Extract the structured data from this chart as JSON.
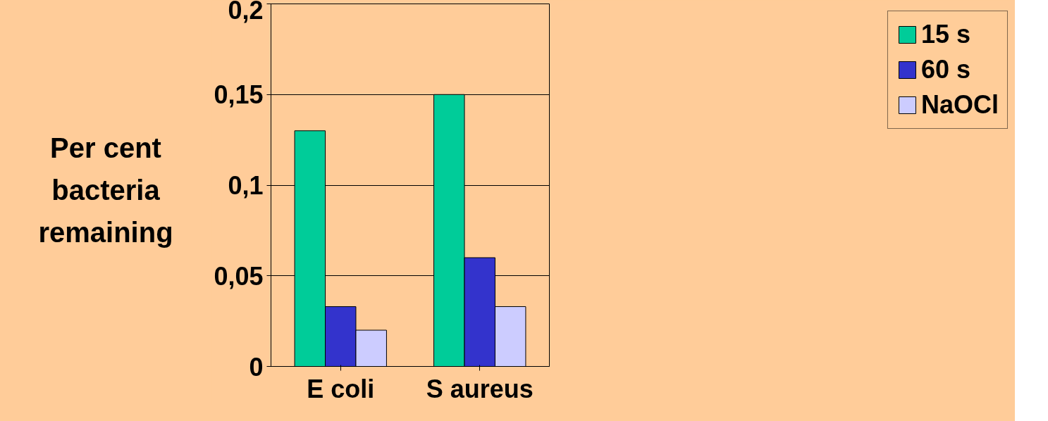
{
  "chart_data": {
    "type": "bar",
    "ylabel": "Per cent bacteria remaining",
    "categories": [
      "E coli",
      "S aureus"
    ],
    "series": [
      {
        "name": "15 s",
        "color": "#00cc99",
        "values": [
          0.13,
          0.15
        ]
      },
      {
        "name": "60 s",
        "color": "#3333cc",
        "values": [
          0.033,
          0.06
        ]
      },
      {
        "name": "NaOCl",
        "color": "#ccccff",
        "values": [
          0.02,
          0.033
        ]
      }
    ],
    "ylim": [
      0,
      0.2
    ],
    "yticks": [
      {
        "value": 0,
        "label": "0"
      },
      {
        "value": 0.05,
        "label": "0,05"
      },
      {
        "value": 0.1,
        "label": "0,1"
      },
      {
        "value": 0.15,
        "label": "0,15"
      },
      {
        "value": 0.2,
        "label": "0,2"
      }
    ],
    "grid": "y",
    "legend": "right"
  }
}
